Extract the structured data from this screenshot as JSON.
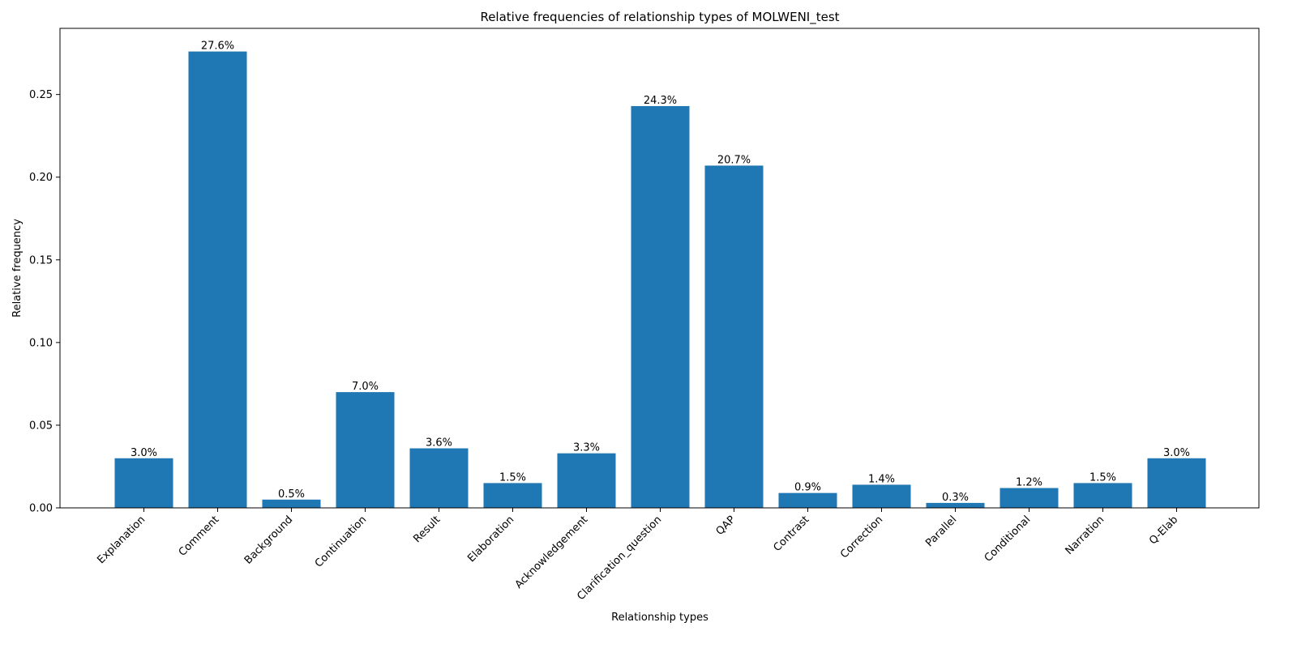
{
  "chart_data": {
    "type": "bar",
    "title": "Relative frequencies of relationship types of MOLWENI_test",
    "xlabel": "Relationship types",
    "ylabel": "Relative frequency",
    "ylim": [
      0,
      0.29
    ],
    "yticks": [
      0.0,
      0.05,
      0.1,
      0.15,
      0.2,
      0.25
    ],
    "ytick_labels": [
      "0.00",
      "0.05",
      "0.10",
      "0.15",
      "0.20",
      "0.25"
    ],
    "grid": false,
    "bar_color": "#1f77b4",
    "categories": [
      "Explanation",
      "Comment",
      "Background",
      "Continuation",
      "Result",
      "Elaboration",
      "Acknowledgement",
      "Clarification_question",
      "QAP",
      "Contrast",
      "Correction",
      "Parallel",
      "Conditional",
      "Narration",
      "Q-Elab"
    ],
    "values": [
      0.03,
      0.276,
      0.005,
      0.07,
      0.036,
      0.015,
      0.033,
      0.243,
      0.207,
      0.009,
      0.014,
      0.003,
      0.012,
      0.015,
      0.03
    ],
    "data_labels": [
      "3.0%",
      "27.6%",
      "0.5%",
      "7.0%",
      "3.6%",
      "1.5%",
      "3.3%",
      "24.3%",
      "20.7%",
      "0.9%",
      "1.4%",
      "0.3%",
      "1.2%",
      "1.5%",
      "3.0%"
    ]
  }
}
